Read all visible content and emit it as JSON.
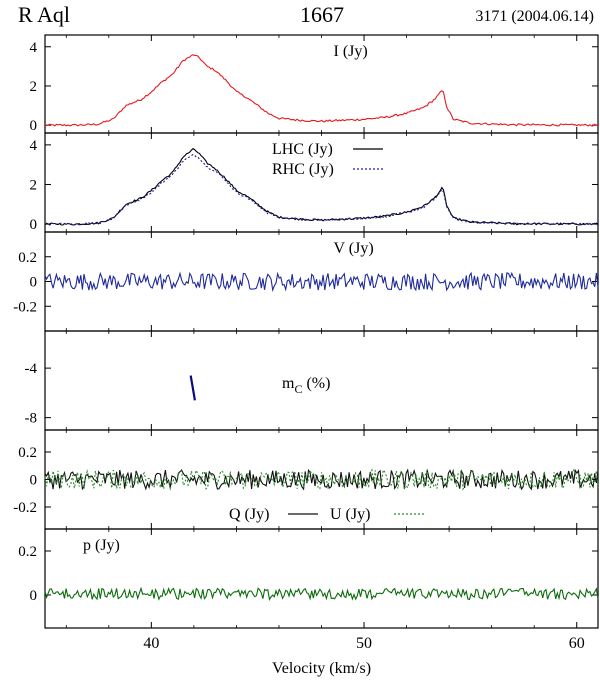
{
  "header": {
    "star": "R Aql",
    "frequency": "1667",
    "epoch": "3171 (2004.06.14)"
  },
  "colors": {
    "I": "#e8191e",
    "LHC": "#000000",
    "RHC": "#1a1aa0",
    "V": "#1f2a9a",
    "mC": "#0a0a80",
    "Q": "#111111",
    "U": "#2a8a2a",
    "p": "#0b6b0b"
  },
  "chart_data": {
    "type": "line",
    "xlabel": "Velocity (km/s)",
    "xlim": [
      35,
      61
    ],
    "xticks": [
      40,
      50,
      60
    ],
    "panels": [
      {
        "id": "I",
        "label": "I (Jy)",
        "ylim": [
          -0.4,
          4.6
        ],
        "yticks": [
          {
            "v": 0,
            "t": "0"
          },
          {
            "v": 2,
            "t": "2"
          },
          {
            "v": 4,
            "t": "4"
          }
        ],
        "series": [
          {
            "name": "I (Jy)",
            "key": "I",
            "dash": false,
            "noise": 0.05,
            "points": [
              [
                35,
                0.0
              ],
              [
                36.5,
                0.0
              ],
              [
                37.5,
                0.05
              ],
              [
                38.2,
                0.3
              ],
              [
                38.8,
                1.0
              ],
              [
                39.5,
                1.3
              ],
              [
                40,
                1.7
              ],
              [
                40.5,
                2.2
              ],
              [
                41,
                2.6
              ],
              [
                41.5,
                3.3
              ],
              [
                42,
                3.6
              ],
              [
                42.3,
                3.4
              ],
              [
                42.6,
                3.0
              ],
              [
                43,
                2.8
              ],
              [
                43.5,
                2.3
              ],
              [
                44,
                1.7
              ],
              [
                44.5,
                1.4
              ],
              [
                45,
                1.0
              ],
              [
                45.5,
                0.6
              ],
              [
                46,
                0.35
              ],
              [
                47,
                0.25
              ],
              [
                48,
                0.2
              ],
              [
                49,
                0.25
              ],
              [
                50,
                0.3
              ],
              [
                51,
                0.4
              ],
              [
                52,
                0.6
              ],
              [
                52.8,
                0.9
              ],
              [
                53.3,
                1.3
              ],
              [
                53.7,
                1.8
              ],
              [
                53.9,
                0.9
              ],
              [
                54.2,
                0.3
              ],
              [
                55,
                0.1
              ],
              [
                57,
                0.02
              ],
              [
                61,
                0.0
              ]
            ]
          }
        ]
      },
      {
        "id": "LR",
        "label": "",
        "ylim": [
          -0.4,
          4.6
        ],
        "yticks": [
          {
            "v": 0,
            "t": "0"
          },
          {
            "v": 2,
            "t": "2"
          },
          {
            "v": 4,
            "t": "4"
          }
        ],
        "legend": [
          {
            "name": "LHC (Jy)",
            "key": "LHC",
            "dash": false
          },
          {
            "name": "RHC (Jy)",
            "key": "RHC",
            "dash": true
          }
        ],
        "series": [
          {
            "name": "LHC (Jy)",
            "key": "LHC",
            "dash": false,
            "noise": 0.05,
            "points": [
              [
                35,
                0.0
              ],
              [
                36.5,
                0.0
              ],
              [
                37.5,
                0.05
              ],
              [
                38.2,
                0.3
              ],
              [
                38.8,
                1.0
              ],
              [
                39.5,
                1.3
              ],
              [
                40,
                1.7
              ],
              [
                40.5,
                2.2
              ],
              [
                41,
                2.6
              ],
              [
                41.5,
                3.4
              ],
              [
                42,
                3.8
              ],
              [
                42.3,
                3.5
              ],
              [
                42.6,
                3.1
              ],
              [
                43,
                2.8
              ],
              [
                43.5,
                2.3
              ],
              [
                44,
                1.7
              ],
              [
                44.5,
                1.4
              ],
              [
                45,
                1.0
              ],
              [
                45.5,
                0.6
              ],
              [
                46,
                0.35
              ],
              [
                47,
                0.25
              ],
              [
                48,
                0.2
              ],
              [
                49,
                0.25
              ],
              [
                50,
                0.3
              ],
              [
                51,
                0.4
              ],
              [
                52,
                0.6
              ],
              [
                52.8,
                0.9
              ],
              [
                53.3,
                1.3
              ],
              [
                53.7,
                1.85
              ],
              [
                53.9,
                0.9
              ],
              [
                54.2,
                0.3
              ],
              [
                55,
                0.1
              ],
              [
                57,
                0.02
              ],
              [
                61,
                0.0
              ]
            ]
          },
          {
            "name": "RHC (Jy)",
            "key": "RHC",
            "dash": true,
            "noise": 0.05,
            "points": [
              [
                35,
                0.0
              ],
              [
                36.5,
                0.0
              ],
              [
                37.5,
                0.05
              ],
              [
                38.2,
                0.28
              ],
              [
                38.8,
                0.95
              ],
              [
                39.5,
                1.25
              ],
              [
                40,
                1.6
              ],
              [
                40.5,
                2.1
              ],
              [
                41,
                2.5
              ],
              [
                41.5,
                3.2
              ],
              [
                42,
                3.5
              ],
              [
                42.3,
                3.3
              ],
              [
                42.6,
                2.9
              ],
              [
                43,
                2.7
              ],
              [
                43.5,
                2.2
              ],
              [
                44,
                1.6
              ],
              [
                44.5,
                1.35
              ],
              [
                45,
                0.95
              ],
              [
                45.5,
                0.55
              ],
              [
                46,
                0.33
              ],
              [
                47,
                0.24
              ],
              [
                48,
                0.2
              ],
              [
                49,
                0.24
              ],
              [
                50,
                0.3
              ],
              [
                51,
                0.38
              ],
              [
                52,
                0.58
              ],
              [
                52.8,
                0.85
              ],
              [
                53.3,
                1.25
              ],
              [
                53.7,
                1.75
              ],
              [
                53.9,
                0.85
              ],
              [
                54.2,
                0.3
              ],
              [
                55,
                0.1
              ],
              [
                57,
                0.02
              ],
              [
                61,
                0.0
              ]
            ]
          }
        ]
      },
      {
        "id": "V",
        "label": "V (Jy)",
        "ylim": [
          -0.4,
          0.4
        ],
        "yticks": [
          {
            "v": -0.2,
            "t": "-0.2"
          },
          {
            "v": 0,
            "t": "0"
          },
          {
            "v": 0.2,
            "t": "0.2"
          }
        ],
        "series": [
          {
            "name": "V (Jy)",
            "key": "V",
            "dash": false,
            "noise": 0.07,
            "points": [
              [
                35,
                0.0
              ],
              [
                61,
                0.0
              ]
            ]
          }
        ]
      },
      {
        "id": "mC",
        "label": "",
        "ylim": [
          -9,
          -1
        ],
        "yticks": [
          {
            "v": -8,
            "t": "-8"
          },
          {
            "v": -4,
            "t": "-4"
          }
        ],
        "series": [
          {
            "name": "",
            "key": "mC",
            "dash": false,
            "noise": 0,
            "points": [
              [
                41.85,
                -4.6
              ],
              [
                41.95,
                -5.6
              ],
              [
                42.05,
                -6.6
              ]
            ]
          }
        ]
      },
      {
        "id": "QU",
        "label": "",
        "ylim": [
          -0.36,
          0.36
        ],
        "yticks": [
          {
            "v": -0.2,
            "t": "-0.2"
          },
          {
            "v": 0,
            "t": "0"
          },
          {
            "v": 0.2,
            "t": "0.2"
          }
        ],
        "legend": [
          {
            "name": "Q (Jy)",
            "key": "Q",
            "dash": false
          },
          {
            "name": "U (Jy)",
            "key": "U",
            "dash": true
          }
        ],
        "series": [
          {
            "name": "Q (Jy)",
            "key": "Q",
            "dash": false,
            "noise": 0.07,
            "points": [
              [
                35,
                0.0
              ],
              [
                61,
                0.0
              ]
            ]
          },
          {
            "name": "U (Jy)",
            "key": "U",
            "dash": true,
            "noise": 0.07,
            "points": [
              [
                35,
                0.0
              ],
              [
                61,
                0.0
              ]
            ]
          }
        ]
      },
      {
        "id": "p",
        "label": "p (Jy)",
        "ylim": [
          -0.15,
          0.3
        ],
        "yticks": [
          {
            "v": 0,
            "t": "0"
          },
          {
            "v": 0.2,
            "t": "0.2"
          }
        ],
        "series": [
          {
            "name": "p (Jy)",
            "key": "p",
            "dash": false,
            "noise": 0.05,
            "abs": true,
            "points": [
              [
                35,
                0.0
              ],
              [
                61,
                0.0
              ]
            ]
          }
        ]
      }
    ]
  }
}
